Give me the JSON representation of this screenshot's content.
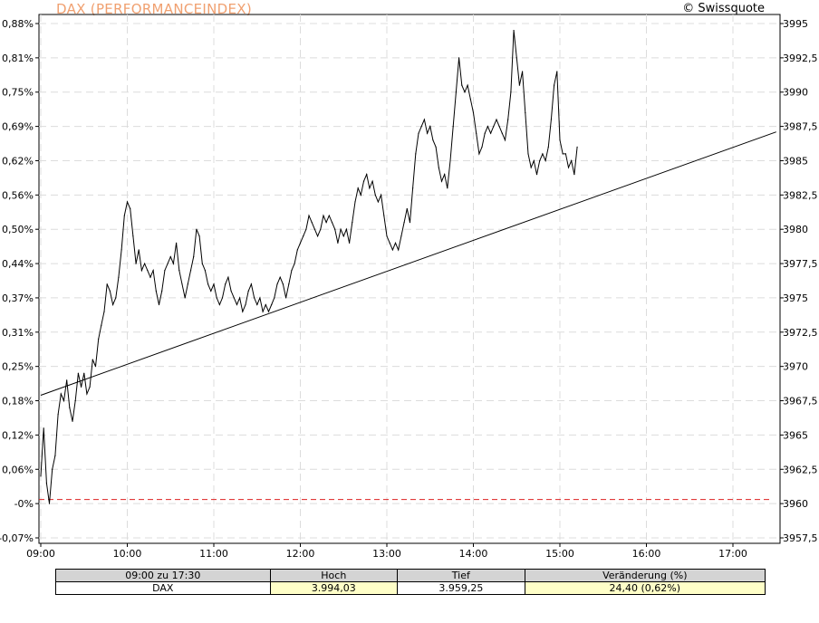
{
  "header": {
    "title": "DAX (PERFORMANCEINDEX)",
    "copyright": "© Swissquote"
  },
  "chart_data": {
    "type": "line",
    "title": "DAX (PERFORMANCEINDEX)",
    "xlabel": "",
    "ylabel": "",
    "x_ticks": [
      "09:00",
      "10:00",
      "11:00",
      "12:00",
      "13:00",
      "14:00",
      "15:00",
      "16:00",
      "17:00"
    ],
    "y_left_ticks": [
      "-0,07%",
      "-0%",
      "0,06%",
      "0,12%",
      "0,18%",
      "0,25%",
      "0,31%",
      "0,37%",
      "0,44%",
      "0,50%",
      "0,56%",
      "0,62%",
      "0,69%",
      "0,75%",
      "0,81%",
      "0,88%"
    ],
    "y_right_ticks": [
      "3957,5",
      "3960",
      "3962,5",
      "3965",
      "3967,5",
      "3970",
      "3972,5",
      "3975",
      "3977,5",
      "3980",
      "3982,5",
      "3985",
      "3987,5",
      "3990",
      "3992,5",
      "3995"
    ],
    "ylim": [
      3957.5,
      3995.0
    ],
    "xlim": [
      "09:00",
      "17:30"
    ],
    "reference_line": {
      "value": 3960.3,
      "style": "dashed",
      "color": "#dd2222"
    },
    "trend_line": {
      "from": {
        "x": "09:00",
        "y": 3967.9
      },
      "to": {
        "x": "17:30",
        "y": 3987.1
      }
    },
    "grid": true,
    "series": [
      {
        "values": [
          {
            "x": "09:00",
            "y": 3962.0
          },
          {
            "x": "09:02",
            "y": 3965.5
          },
          {
            "x": "09:04",
            "y": 3961.5
          },
          {
            "x": "09:06",
            "y": 3960.0
          },
          {
            "x": "09:08",
            "y": 3962.5
          },
          {
            "x": "09:10",
            "y": 3963.5
          },
          {
            "x": "09:12",
            "y": 3966.5
          },
          {
            "x": "09:14",
            "y": 3968.0
          },
          {
            "x": "09:16",
            "y": 3967.5
          },
          {
            "x": "09:18",
            "y": 3969.0
          },
          {
            "x": "09:20",
            "y": 3967.0
          },
          {
            "x": "09:22",
            "y": 3966.0
          },
          {
            "x": "09:24",
            "y": 3967.5
          },
          {
            "x": "09:26",
            "y": 3969.5
          },
          {
            "x": "09:28",
            "y": 3968.5
          },
          {
            "x": "09:30",
            "y": 3969.5
          },
          {
            "x": "09:32",
            "y": 3968.0
          },
          {
            "x": "09:34",
            "y": 3968.5
          },
          {
            "x": "09:36",
            "y": 3970.5
          },
          {
            "x": "09:38",
            "y": 3970.0
          },
          {
            "x": "09:40",
            "y": 3972.0
          },
          {
            "x": "09:42",
            "y": 3973.0
          },
          {
            "x": "09:44",
            "y": 3974.0
          },
          {
            "x": "09:46",
            "y": 3976.0
          },
          {
            "x": "09:48",
            "y": 3975.5
          },
          {
            "x": "09:50",
            "y": 3974.5
          },
          {
            "x": "09:52",
            "y": 3975.0
          },
          {
            "x": "09:54",
            "y": 3976.5
          },
          {
            "x": "09:56",
            "y": 3978.5
          },
          {
            "x": "09:58",
            "y": 3981.0
          },
          {
            "x": "10:00",
            "y": 3982.0
          },
          {
            "x": "10:02",
            "y": 3981.5
          },
          {
            "x": "10:04",
            "y": 3979.5
          },
          {
            "x": "10:06",
            "y": 3977.5
          },
          {
            "x": "10:08",
            "y": 3978.5
          },
          {
            "x": "10:10",
            "y": 3977.0
          },
          {
            "x": "10:12",
            "y": 3977.5
          },
          {
            "x": "10:14",
            "y": 3977.0
          },
          {
            "x": "10:16",
            "y": 3976.5
          },
          {
            "x": "10:18",
            "y": 3977.0
          },
          {
            "x": "10:20",
            "y": 3975.5
          },
          {
            "x": "10:22",
            "y": 3974.5
          },
          {
            "x": "10:24",
            "y": 3975.5
          },
          {
            "x": "10:26",
            "y": 3977.0
          },
          {
            "x": "10:28",
            "y": 3977.5
          },
          {
            "x": "10:30",
            "y": 3978.0
          },
          {
            "x": "10:32",
            "y": 3977.5
          },
          {
            "x": "10:34",
            "y": 3979.0
          },
          {
            "x": "10:36",
            "y": 3977.0
          },
          {
            "x": "10:38",
            "y": 3976.0
          },
          {
            "x": "10:40",
            "y": 3975.0
          },
          {
            "x": "10:42",
            "y": 3976.0
          },
          {
            "x": "10:44",
            "y": 3977.0
          },
          {
            "x": "10:46",
            "y": 3978.0
          },
          {
            "x": "10:48",
            "y": 3980.0
          },
          {
            "x": "10:50",
            "y": 3979.5
          },
          {
            "x": "10:52",
            "y": 3977.5
          },
          {
            "x": "10:54",
            "y": 3977.0
          },
          {
            "x": "10:56",
            "y": 3976.0
          },
          {
            "x": "10:58",
            "y": 3975.5
          },
          {
            "x": "11:00",
            "y": 3976.0
          },
          {
            "x": "11:02",
            "y": 3975.0
          },
          {
            "x": "11:04",
            "y": 3974.5
          },
          {
            "x": "11:06",
            "y": 3975.0
          },
          {
            "x": "11:08",
            "y": 3976.0
          },
          {
            "x": "11:10",
            "y": 3976.5
          },
          {
            "x": "11:12",
            "y": 3975.5
          },
          {
            "x": "11:14",
            "y": 3975.0
          },
          {
            "x": "11:16",
            "y": 3974.5
          },
          {
            "x": "11:18",
            "y": 3975.0
          },
          {
            "x": "11:20",
            "y": 3974.0
          },
          {
            "x": "11:22",
            "y": 3974.5
          },
          {
            "x": "11:24",
            "y": 3975.5
          },
          {
            "x": "11:26",
            "y": 3976.0
          },
          {
            "x": "11:28",
            "y": 3975.0
          },
          {
            "x": "11:30",
            "y": 3974.5
          },
          {
            "x": "11:32",
            "y": 3975.0
          },
          {
            "x": "11:34",
            "y": 3974.0
          },
          {
            "x": "11:36",
            "y": 3974.5
          },
          {
            "x": "11:38",
            "y": 3974.0
          },
          {
            "x": "11:40",
            "y": 3974.5
          },
          {
            "x": "11:42",
            "y": 3975.0
          },
          {
            "x": "11:44",
            "y": 3976.0
          },
          {
            "x": "11:46",
            "y": 3976.5
          },
          {
            "x": "11:48",
            "y": 3976.0
          },
          {
            "x": "11:50",
            "y": 3975.0
          },
          {
            "x": "11:52",
            "y": 3976.0
          },
          {
            "x": "11:54",
            "y": 3977.0
          },
          {
            "x": "11:56",
            "y": 3977.5
          },
          {
            "x": "11:58",
            "y": 3978.5
          },
          {
            "x": "12:00",
            "y": 3979.0
          },
          {
            "x": "12:02",
            "y": 3979.5
          },
          {
            "x": "12:04",
            "y": 3980.0
          },
          {
            "x": "12:06",
            "y": 3981.0
          },
          {
            "x": "12:08",
            "y": 3980.5
          },
          {
            "x": "12:10",
            "y": 3980.0
          },
          {
            "x": "12:12",
            "y": 3979.5
          },
          {
            "x": "12:14",
            "y": 3980.0
          },
          {
            "x": "12:16",
            "y": 3981.0
          },
          {
            "x": "12:18",
            "y": 3980.5
          },
          {
            "x": "12:20",
            "y": 3981.0
          },
          {
            "x": "12:22",
            "y": 3980.5
          },
          {
            "x": "12:24",
            "y": 3980.0
          },
          {
            "x": "12:26",
            "y": 3979.0
          },
          {
            "x": "12:28",
            "y": 3980.0
          },
          {
            "x": "12:30",
            "y": 3979.5
          },
          {
            "x": "12:32",
            "y": 3980.0
          },
          {
            "x": "12:34",
            "y": 3979.0
          },
          {
            "x": "12:36",
            "y": 3980.5
          },
          {
            "x": "12:38",
            "y": 3982.0
          },
          {
            "x": "12:40",
            "y": 3983.0
          },
          {
            "x": "12:42",
            "y": 3982.5
          },
          {
            "x": "12:44",
            "y": 3983.5
          },
          {
            "x": "12:46",
            "y": 3984.0
          },
          {
            "x": "12:48",
            "y": 3983.0
          },
          {
            "x": "12:50",
            "y": 3983.5
          },
          {
            "x": "12:52",
            "y": 3982.5
          },
          {
            "x": "12:54",
            "y": 3982.0
          },
          {
            "x": "12:56",
            "y": 3982.5
          },
          {
            "x": "12:58",
            "y": 3981.0
          },
          {
            "x": "13:00",
            "y": 3979.5
          },
          {
            "x": "13:02",
            "y": 3979.0
          },
          {
            "x": "13:04",
            "y": 3978.5
          },
          {
            "x": "13:06",
            "y": 3979.0
          },
          {
            "x": "13:08",
            "y": 3978.5
          },
          {
            "x": "13:10",
            "y": 3979.5
          },
          {
            "x": "13:12",
            "y": 3980.5
          },
          {
            "x": "13:14",
            "y": 3981.5
          },
          {
            "x": "13:16",
            "y": 3980.5
          },
          {
            "x": "13:18",
            "y": 3983.0
          },
          {
            "x": "13:20",
            "y": 3985.5
          },
          {
            "x": "13:22",
            "y": 3987.0
          },
          {
            "x": "13:24",
            "y": 3987.5
          },
          {
            "x": "13:26",
            "y": 3988.0
          },
          {
            "x": "13:28",
            "y": 3987.0
          },
          {
            "x": "13:30",
            "y": 3987.5
          },
          {
            "x": "13:32",
            "y": 3986.5
          },
          {
            "x": "13:34",
            "y": 3986.0
          },
          {
            "x": "13:36",
            "y": 3984.5
          },
          {
            "x": "13:38",
            "y": 3983.5
          },
          {
            "x": "13:40",
            "y": 3984.0
          },
          {
            "x": "13:42",
            "y": 3983.0
          },
          {
            "x": "13:44",
            "y": 3985.0
          },
          {
            "x": "13:46",
            "y": 3987.5
          },
          {
            "x": "13:48",
            "y": 3990.0
          },
          {
            "x": "13:50",
            "y": 3992.5
          },
          {
            "x": "13:52",
            "y": 3990.5
          },
          {
            "x": "13:54",
            "y": 3990.0
          },
          {
            "x": "13:56",
            "y": 3990.5
          },
          {
            "x": "13:58",
            "y": 3989.5
          },
          {
            "x": "14:00",
            "y": 3988.5
          },
          {
            "x": "14:02",
            "y": 3987.0
          },
          {
            "x": "14:04",
            "y": 3985.5
          },
          {
            "x": "14:06",
            "y": 3986.0
          },
          {
            "x": "14:08",
            "y": 3987.0
          },
          {
            "x": "14:10",
            "y": 3987.5
          },
          {
            "x": "14:12",
            "y": 3987.0
          },
          {
            "x": "14:14",
            "y": 3987.5
          },
          {
            "x": "14:16",
            "y": 3988.0
          },
          {
            "x": "14:18",
            "y": 3987.5
          },
          {
            "x": "14:20",
            "y": 3987.0
          },
          {
            "x": "14:22",
            "y": 3986.5
          },
          {
            "x": "14:24",
            "y": 3988.0
          },
          {
            "x": "14:26",
            "y": 3990.0
          },
          {
            "x": "14:28",
            "y": 3994.5
          },
          {
            "x": "14:30",
            "y": 3992.5
          },
          {
            "x": "14:32",
            "y": 3990.5
          },
          {
            "x": "14:34",
            "y": 3991.5
          },
          {
            "x": "14:36",
            "y": 3988.5
          },
          {
            "x": "14:38",
            "y": 3985.5
          },
          {
            "x": "14:40",
            "y": 3984.5
          },
          {
            "x": "14:42",
            "y": 3985.0
          },
          {
            "x": "14:44",
            "y": 3984.0
          },
          {
            "x": "14:46",
            "y": 3985.0
          },
          {
            "x": "14:48",
            "y": 3985.5
          },
          {
            "x": "14:50",
            "y": 3985.0
          },
          {
            "x": "14:52",
            "y": 3986.0
          },
          {
            "x": "14:54",
            "y": 3988.0
          },
          {
            "x": "14:56",
            "y": 3990.5
          },
          {
            "x": "14:58",
            "y": 3991.5
          },
          {
            "x": "15:00",
            "y": 3986.5
          },
          {
            "x": "15:02",
            "y": 3985.5
          },
          {
            "x": "15:04",
            "y": 3985.5
          },
          {
            "x": "15:06",
            "y": 3984.5
          },
          {
            "x": "15:08",
            "y": 3985.0
          },
          {
            "x": "15:10",
            "y": 3984.0
          },
          {
            "x": "15:12",
            "y": 3986.0
          }
        ]
      }
    ]
  },
  "summary": {
    "headers": [
      "09:00 zu 17:30",
      "Hoch",
      "Tief",
      "Veränderung (%)"
    ],
    "row": [
      "DAX",
      "3.994,03",
      "3.959,25",
      "24,40 (0,62%)"
    ]
  }
}
